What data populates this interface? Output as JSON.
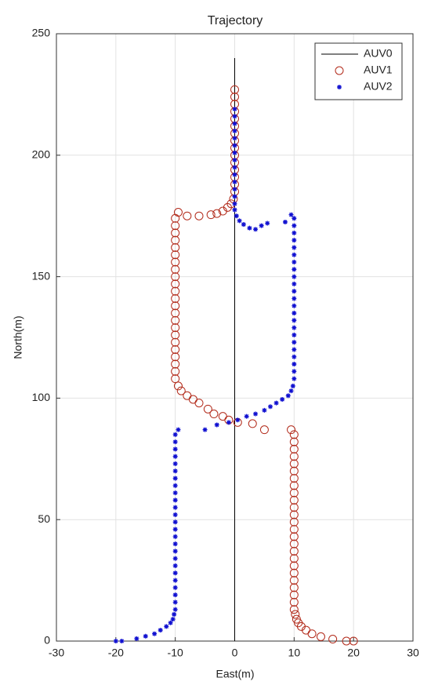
{
  "chart_data": {
    "type": "line",
    "title": "Trajectory",
    "x_label": "East(m)",
    "y_label": "North(m)",
    "xlim": [
      -30,
      30
    ],
    "xticks": [
      -30,
      -20,
      -10,
      0,
      10,
      20,
      30
    ],
    "ylim": [
      0,
      250
    ],
    "yticks": [
      0,
      50,
      100,
      150,
      200,
      250
    ],
    "grid": true,
    "legend": "top-right",
    "series": [
      {
        "name": "AUV0",
        "color": "#000000",
        "style": "line",
        "x": [
          0,
          0
        ],
        "y": [
          0,
          240
        ]
      },
      {
        "name": "AUV1",
        "color": "#b22a1a",
        "style": "circle",
        "x": [
          20,
          18.8,
          16.5,
          14.5,
          13,
          12,
          11.2,
          10.7,
          10.4,
          10.2,
          10,
          10,
          10,
          10,
          10,
          10,
          10,
          10,
          10,
          10,
          10,
          10,
          10,
          10,
          10,
          10,
          10,
          10,
          10,
          10,
          10,
          10,
          10,
          10,
          10,
          9.5,
          5,
          3,
          0.5,
          -1,
          -2,
          -3.5,
          -4.5,
          -6,
          -7,
          -8,
          -9,
          -9.5,
          -10,
          -10,
          -10,
          -10,
          -10,
          -10,
          -10,
          -10,
          -10,
          -10,
          -10,
          -10,
          -10,
          -10,
          -10,
          -10,
          -10,
          -10,
          -10,
          -10,
          -10,
          -10,
          -10,
          -9.5,
          -8,
          -6,
          -4,
          -3,
          -2,
          -1.2,
          -0.6,
          -0.2,
          0,
          0,
          0,
          0,
          0,
          0,
          0,
          0,
          0,
          0,
          0,
          0,
          0,
          0,
          0
        ],
        "y": [
          0,
          0,
          0.8,
          1.8,
          3,
          4.5,
          6,
          7.5,
          9,
          11,
          13,
          16,
          19,
          22,
          25,
          28,
          31,
          34,
          37,
          40,
          43,
          46,
          49,
          52,
          55,
          58,
          61,
          64,
          67,
          70,
          73,
          76,
          79,
          82,
          85,
          87,
          87,
          89.5,
          90,
          91,
          92.5,
          93.5,
          95.5,
          98,
          99.5,
          101,
          103,
          105,
          108,
          111,
          114,
          117,
          120,
          123,
          126,
          129,
          132,
          135,
          138,
          141,
          144,
          147,
          150,
          153,
          156,
          159,
          162,
          165,
          168,
          171,
          174,
          176.5,
          175,
          175,
          175.5,
          176,
          177,
          178.5,
          180,
          182,
          185,
          188,
          191,
          194,
          197,
          200,
          203,
          206,
          209,
          212,
          215,
          218,
          221,
          224,
          227
        ]
      },
      {
        "name": "AUV2",
        "color": "#1010d0",
        "style": "star",
        "x": [
          -20,
          -19,
          -16.5,
          -15,
          -13.5,
          -12.5,
          -11.5,
          -10.8,
          -10.4,
          -10.2,
          -10,
          -10,
          -10,
          -10,
          -10,
          -10,
          -10,
          -10,
          -10,
          -10,
          -10,
          -10,
          -10,
          -10,
          -10,
          -10,
          -10,
          -10,
          -10,
          -10,
          -10,
          -10,
          -10,
          -10,
          -10,
          -9.5,
          -5,
          -3,
          -1,
          0.5,
          2,
          3.5,
          5,
          6,
          7,
          8,
          9,
          9.5,
          9.8,
          10,
          10,
          10,
          10,
          10,
          10,
          10,
          10,
          10,
          10,
          10,
          10,
          10,
          10,
          10,
          10,
          10,
          10,
          10,
          10,
          10,
          10,
          10,
          9.5,
          8.5,
          5.5,
          4.5,
          3.5,
          2.5,
          1.5,
          0.8,
          0.3,
          0,
          0,
          0,
          0,
          0,
          0,
          0,
          0,
          0,
          0,
          0,
          0,
          0,
          0,
          0
        ],
        "y": [
          0,
          0,
          1,
          2,
          3,
          4.5,
          6,
          7.5,
          9,
          11,
          13,
          16,
          19,
          22,
          25,
          28,
          31,
          34,
          37,
          40,
          43,
          46,
          49,
          52,
          55,
          58,
          61,
          64,
          67,
          70,
          73,
          76,
          79,
          82,
          85,
          87,
          87,
          89,
          90,
          91,
          92.5,
          93.5,
          95,
          96.5,
          98,
          99.5,
          101,
          103,
          105,
          108,
          111,
          114,
          117,
          120,
          123,
          126,
          129,
          132,
          135,
          138,
          141,
          144,
          147,
          150,
          153,
          156,
          159,
          162,
          165,
          168,
          171,
          174,
          175.5,
          172.5,
          172,
          171,
          169.5,
          170,
          171.5,
          173,
          175,
          177.5,
          180,
          183,
          186,
          189,
          192,
          195,
          198,
          201,
          204,
          207,
          210,
          213,
          216,
          219
        ]
      }
    ]
  }
}
